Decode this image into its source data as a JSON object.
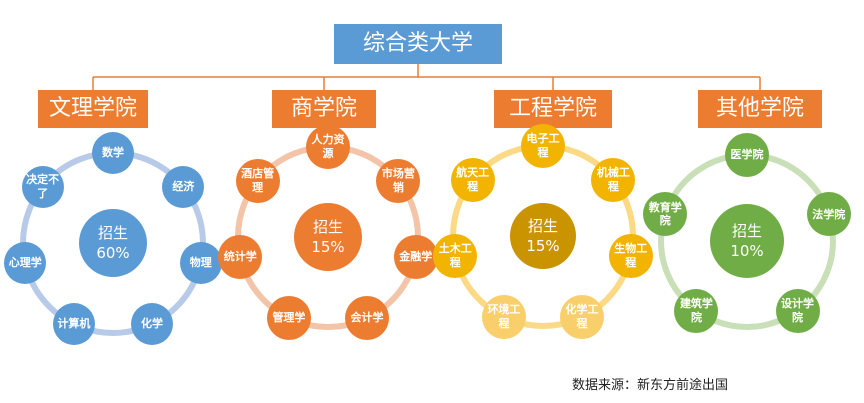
{
  "title": "综合类大学",
  "categories": [
    {
      "label": "文理学院",
      "center_label": "招生",
      "center_value": "60%",
      "ring_color": "#b7cbe8",
      "node_color": "#5b9bd5",
      "node_color_light": "#5b9bd5",
      "items": [
        "数学",
        "经济",
        "物理",
        "化学",
        "计算机",
        "心理学",
        "决定不了"
      ]
    },
    {
      "label": "商学院",
      "center_label": "招生",
      "center_value": "15%",
      "ring_color": "#f3c4a7",
      "node_color": "#ec7c30",
      "node_color_light": "#ec7c30",
      "items": [
        "人力资源",
        "市场营销",
        "金融学",
        "会计学",
        "管理学",
        "统计学",
        "酒店管理"
      ]
    },
    {
      "label": "工程学院",
      "center_label": "招生",
      "center_value": "15%",
      "ring_color": "#fbd985",
      "node_color": "#f2b400",
      "node_color_light": "#f8cf6a",
      "center_color": "#c99400",
      "items": [
        "电子工程",
        "机械工程",
        "生物工程",
        "化学工程",
        "环境工程",
        "土木工程",
        "航天工程"
      ]
    },
    {
      "label": "其他学院",
      "center_label": "招生",
      "center_value": "10%",
      "ring_color": "#c9dfb8",
      "node_color": "#70ad47",
      "node_color_light": "#70ad47",
      "items": [
        "医学院",
        "法学院",
        "设计学院",
        "建筑学院",
        "教育学院"
      ]
    }
  ],
  "source": "数据来源：新东方前途出国",
  "colors": {
    "root": "#5b9bd5",
    "category": "#ec7c30",
    "connector": "#ec7c30"
  }
}
